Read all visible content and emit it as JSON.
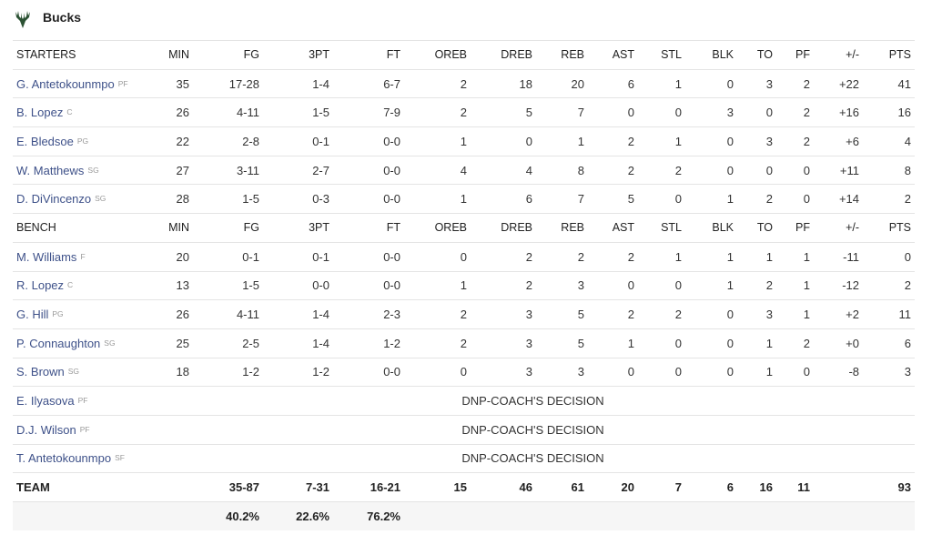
{
  "header": {
    "team": "Bucks"
  },
  "columns": [
    "MIN",
    "FG",
    "3PT",
    "FT",
    "OREB",
    "DREB",
    "REB",
    "AST",
    "STL",
    "BLK",
    "TO",
    "PF",
    "+/-",
    "PTS"
  ],
  "starters": {
    "label": "STARTERS",
    "rows": [
      {
        "name": "G. Antetokounmpo",
        "position": "PF",
        "stats": [
          "35",
          "17-28",
          "1-4",
          "6-7",
          "2",
          "18",
          "20",
          "6",
          "1",
          "0",
          "3",
          "2",
          "+22",
          "41"
        ]
      },
      {
        "name": "B. Lopez",
        "position": "C",
        "stats": [
          "26",
          "4-11",
          "1-5",
          "7-9",
          "2",
          "5",
          "7",
          "0",
          "0",
          "3",
          "0",
          "2",
          "+16",
          "16"
        ]
      },
      {
        "name": "E. Bledsoe",
        "position": "PG",
        "stats": [
          "22",
          "2-8",
          "0-1",
          "0-0",
          "1",
          "0",
          "1",
          "2",
          "1",
          "0",
          "3",
          "2",
          "+6",
          "4"
        ]
      },
      {
        "name": "W. Matthews",
        "position": "SG",
        "stats": [
          "27",
          "3-11",
          "2-7",
          "0-0",
          "4",
          "4",
          "8",
          "2",
          "2",
          "0",
          "0",
          "0",
          "+11",
          "8"
        ]
      },
      {
        "name": "D. DiVincenzo",
        "position": "SG",
        "stats": [
          "28",
          "1-5",
          "0-3",
          "0-0",
          "1",
          "6",
          "7",
          "5",
          "0",
          "1",
          "2",
          "0",
          "+14",
          "2"
        ]
      }
    ]
  },
  "bench": {
    "label": "BENCH",
    "rows": [
      {
        "name": "M. Williams",
        "position": "F",
        "stats": [
          "20",
          "0-1",
          "0-1",
          "0-0",
          "0",
          "2",
          "2",
          "2",
          "1",
          "1",
          "1",
          "1",
          "-11",
          "0"
        ]
      },
      {
        "name": "R. Lopez",
        "position": "C",
        "stats": [
          "13",
          "1-5",
          "0-0",
          "0-0",
          "1",
          "2",
          "3",
          "0",
          "0",
          "1",
          "2",
          "1",
          "-12",
          "2"
        ]
      },
      {
        "name": "G. Hill",
        "position": "PG",
        "stats": [
          "26",
          "4-11",
          "1-4",
          "2-3",
          "2",
          "3",
          "5",
          "2",
          "2",
          "0",
          "3",
          "1",
          "+2",
          "11"
        ]
      },
      {
        "name": "P. Connaughton",
        "position": "SG",
        "stats": [
          "25",
          "2-5",
          "1-4",
          "1-2",
          "2",
          "3",
          "5",
          "1",
          "0",
          "0",
          "1",
          "2",
          "+0",
          "6"
        ]
      },
      {
        "name": "S. Brown",
        "position": "SG",
        "stats": [
          "18",
          "1-2",
          "1-2",
          "0-0",
          "0",
          "3",
          "3",
          "0",
          "0",
          "0",
          "1",
          "0",
          "-8",
          "3"
        ]
      },
      {
        "name": "E. Ilyasova",
        "position": "PF",
        "dnp": "DNP-COACH'S DECISION"
      },
      {
        "name": "D.J. Wilson",
        "position": "PF",
        "dnp": "DNP-COACH'S DECISION"
      },
      {
        "name": "T. Antetokounmpo",
        "position": "SF",
        "dnp": "DNP-COACH'S DECISION"
      }
    ]
  },
  "team": {
    "label": "TEAM",
    "stats": [
      null,
      "35-87",
      "7-31",
      "16-21",
      "15",
      "46",
      "61",
      "20",
      "7",
      "6",
      "16",
      "11",
      null,
      "93"
    ],
    "percentages": [
      null,
      "40.2%",
      "22.6%",
      "76.2%",
      null,
      null,
      null,
      null,
      null,
      null,
      null,
      null,
      null,
      null
    ]
  }
}
